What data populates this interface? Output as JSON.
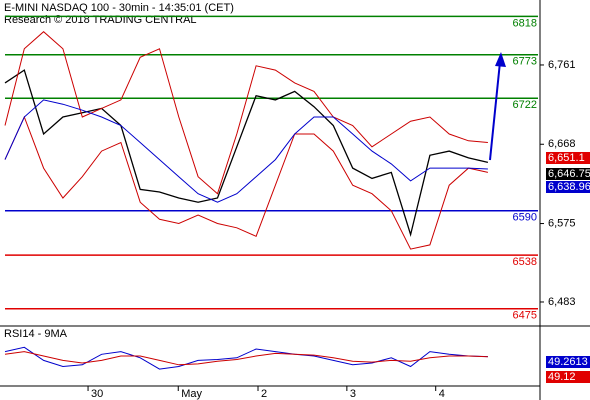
{
  "chart_data": [
    {
      "type": "line",
      "title": "E-MINI NASDAQ 100 - 30min - 14:35:01 (CET)",
      "subtitle": "Research © 2018 TRADING CENTRAL",
      "x": [
        0,
        1,
        2,
        3,
        4,
        5,
        6,
        7,
        8,
        9,
        10,
        11,
        12,
        13,
        14,
        15,
        16,
        17,
        18,
        19,
        20,
        21,
        22,
        23,
        24,
        25
      ],
      "xlim": [
        0,
        27.7
      ],
      "ylim": [
        6456,
        6837.2
      ],
      "yticks": [
        {
          "value": 6761,
          "label": "6,761"
        },
        {
          "value": 6668,
          "label": "6,668"
        },
        {
          "value": 6575,
          "label": "6,575"
        },
        {
          "value": 6483,
          "label": "6,483"
        }
      ],
      "series": [
        {
          "color": "#000000",
          "values": [
            6740,
            6755,
            6680,
            6700,
            6705,
            6710,
            6690,
            6615,
            6612,
            6605,
            6600,
            6605,
            6665,
            6725,
            6720,
            6730,
            6712,
            6690,
            6640,
            6628,
            6635,
            6562,
            6655,
            6660,
            6652,
            6646.75
          ]
        },
        {
          "color": "#cc0000",
          "values": [
            6690,
            6780,
            6800,
            6780,
            6700,
            6710,
            6720,
            6770,
            6780,
            6700,
            6630,
            6610,
            6680,
            6760,
            6755,
            6740,
            6730,
            6700,
            6690,
            6665,
            6680,
            6695,
            6700,
            6680,
            6672,
            6670
          ]
        },
        {
          "color": "#cc0000",
          "values": [
            6650,
            6700,
            6640,
            6605,
            6630,
            6660,
            6670,
            6600,
            6580,
            6575,
            6585,
            6575,
            6570,
            6560,
            6620,
            6680,
            6680,
            6660,
            6620,
            6610,
            6590,
            6545,
            6550,
            6620,
            6640,
            6635
          ]
        },
        {
          "color": "#0000cc",
          "values": [
            6650,
            6700,
            6720,
            6715,
            6708,
            6700,
            6690,
            6670,
            6650,
            6630,
            6610,
            6600,
            6610,
            6630,
            6650,
            6680,
            6700,
            6700,
            6680,
            6660,
            6645,
            6625,
            6640,
            6640,
            6640,
            6638.96
          ]
        }
      ],
      "levels": [
        {
          "value": 6818,
          "color": "#008000"
        },
        {
          "value": 6773,
          "color": "#008000"
        },
        {
          "value": 6722,
          "color": "#008000"
        },
        {
          "value": 6590,
          "color": "#0000cc"
        },
        {
          "value": 6538,
          "color": "#e00000"
        },
        {
          "value": 6475,
          "color": "#e00000"
        }
      ],
      "markers": [
        {
          "value": 6651.1,
          "label": "6,651.1",
          "color": "#e00000"
        },
        {
          "value": 6646.75,
          "label": "6,646.75",
          "color": "#000000"
        },
        {
          "value": 6638.96,
          "label": "6,638.96",
          "color": "#0000cc"
        }
      ]
    },
    {
      "type": "line",
      "title": "RSI14 - 9MA",
      "x": [
        0,
        1,
        2,
        3,
        4,
        5,
        6,
        7,
        8,
        9,
        10,
        11,
        12,
        13,
        14,
        15,
        16,
        17,
        18,
        19,
        20,
        21,
        22,
        23,
        24,
        25
      ],
      "xlim": [
        0,
        27.7
      ],
      "ylim": [
        18,
        82
      ],
      "xticks": [
        {
          "value": 4.3,
          "label": "30"
        },
        {
          "value": 8.97,
          "label": "May"
        },
        {
          "value": 13.1,
          "label": "2"
        },
        {
          "value": 17.7,
          "label": "3"
        },
        {
          "value": 22.3,
          "label": "4"
        }
      ],
      "series": [
        {
          "color": "#0000cc",
          "values": [
            55,
            60,
            45,
            38,
            40,
            52,
            55,
            48,
            35,
            38,
            45,
            46,
            48,
            58,
            55,
            52,
            50,
            45,
            40,
            42,
            48,
            38,
            55,
            52,
            50,
            49.2613
          ]
        },
        {
          "color": "#cc0000",
          "values": [
            52,
            55,
            50,
            45,
            42,
            45,
            50,
            50,
            45,
            40,
            41,
            44,
            46,
            50,
            53,
            52,
            51,
            48,
            44,
            43,
            45,
            44,
            48,
            50,
            50,
            49.12
          ]
        }
      ],
      "markers": [
        {
          "value": 49.2613,
          "color": "#0000cc"
        },
        {
          "value": 49.12,
          "color": "#e00000"
        }
      ]
    }
  ]
}
